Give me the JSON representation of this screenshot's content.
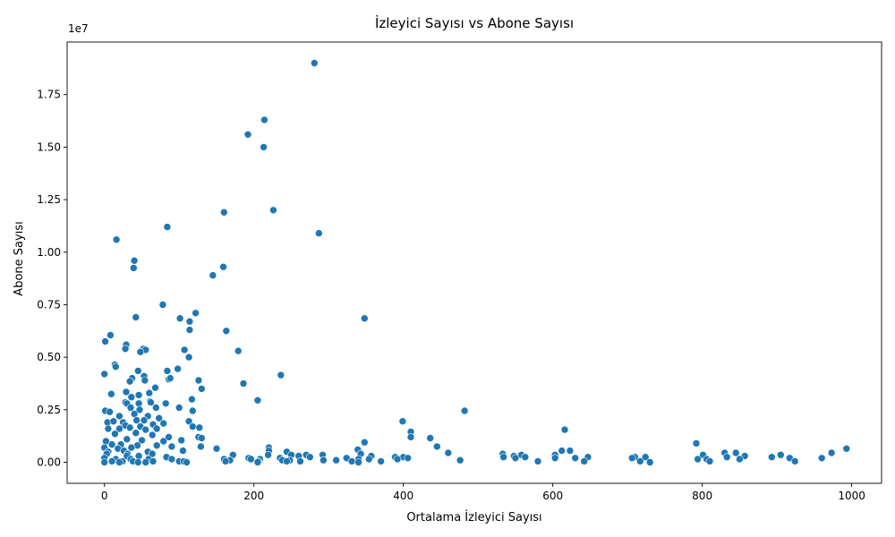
{
  "colors": {
    "marker": "#1f77b4",
    "marker_edge": "#ffffff",
    "axes": "#000000"
  },
  "chart_data": {
    "type": "scatter",
    "title": "İzleyici Sayısı vs Abone Sayısı",
    "xlabel": "Ortalama İzleyici Sayısı",
    "ylabel": "Abone Sayısı",
    "y_offset_label": "1e7",
    "xlim": [
      -50,
      1040
    ],
    "ylim": [
      -1000000,
      20000000
    ],
    "xticks": [
      0,
      200,
      400,
      600,
      800,
      1000
    ],
    "xtick_labels": [
      "0",
      "200",
      "400",
      "600",
      "800",
      "1000"
    ],
    "yticks": [
      0,
      2500000,
      5000000,
      7500000,
      10000000,
      12500000,
      15000000,
      17500000
    ],
    "ytick_labels": [
      "0.00",
      "0.25",
      "0.50",
      "0.75",
      "1.00",
      "1.25",
      "1.50",
      "1.75"
    ],
    "grid": false,
    "legend": "none",
    "points": [
      [
        281,
        19000000
      ],
      [
        214,
        16300000
      ],
      [
        192,
        15600000
      ],
      [
        213,
        15000000
      ],
      [
        226,
        12000000
      ],
      [
        160,
        11900000
      ],
      [
        84,
        11200000
      ],
      [
        287,
        10900000
      ],
      [
        16,
        10600000
      ],
      [
        40,
        9600000
      ],
      [
        39,
        9250000
      ],
      [
        159,
        9300000
      ],
      [
        145,
        8900000
      ],
      [
        78,
        7500000
      ],
      [
        122,
        7100000
      ],
      [
        42,
        6900000
      ],
      [
        101,
        6850000
      ],
      [
        114,
        6700000
      ],
      [
        348,
        6850000
      ],
      [
        114,
        6300000
      ],
      [
        163,
        6250000
      ],
      [
        8,
        6050000
      ],
      [
        1,
        5750000
      ],
      [
        29,
        5600000
      ],
      [
        28,
        5400000
      ],
      [
        52,
        5400000
      ],
      [
        55,
        5350000
      ],
      [
        48,
        5250000
      ],
      [
        107,
        5350000
      ],
      [
        179,
        5300000
      ],
      [
        113,
        5000000
      ],
      [
        14,
        4650000
      ],
      [
        15,
        4550000
      ],
      [
        84,
        4350000
      ],
      [
        98,
        4450000
      ],
      [
        45,
        4350000
      ],
      [
        0,
        4200000
      ],
      [
        236,
        4150000
      ],
      [
        53,
        4100000
      ],
      [
        37,
        4000000
      ],
      [
        86,
        3950000
      ],
      [
        88,
        4000000
      ],
      [
        126,
        3900000
      ],
      [
        34,
        3850000
      ],
      [
        186,
        3750000
      ],
      [
        54,
        3900000
      ],
      [
        68,
        3550000
      ],
      [
        130,
        3500000
      ],
      [
        9,
        3250000
      ],
      [
        29,
        3350000
      ],
      [
        46,
        3200000
      ],
      [
        60,
        3300000
      ],
      [
        36,
        3100000
      ],
      [
        117,
        3000000
      ],
      [
        61,
        2900000
      ],
      [
        205,
        2950000
      ],
      [
        28,
        2850000
      ],
      [
        30,
        2800000
      ],
      [
        46,
        2800000
      ],
      [
        62,
        2850000
      ],
      [
        82,
        2800000
      ],
      [
        100,
        2600000
      ],
      [
        35,
        2600000
      ],
      [
        47,
        2500000
      ],
      [
        69,
        2600000
      ],
      [
        1,
        2450000
      ],
      [
        118,
        2450000
      ],
      [
        482,
        2450000
      ],
      [
        7,
        2400000
      ],
      [
        20,
        2200000
      ],
      [
        40,
        2300000
      ],
      [
        73,
        2100000
      ],
      [
        58,
        2200000
      ],
      [
        399,
        1950000
      ],
      [
        4,
        1900000
      ],
      [
        12,
        1950000
      ],
      [
        25,
        1900000
      ],
      [
        43,
        2000000
      ],
      [
        53,
        2000000
      ],
      [
        79,
        1850000
      ],
      [
        113,
        1950000
      ],
      [
        28,
        1750000
      ],
      [
        65,
        1800000
      ],
      [
        118,
        1700000
      ],
      [
        127,
        1650000
      ],
      [
        616,
        1550000
      ],
      [
        410,
        1450000
      ],
      [
        5,
        1600000
      ],
      [
        20,
        1600000
      ],
      [
        34,
        1650000
      ],
      [
        48,
        1700000
      ],
      [
        55,
        1550000
      ],
      [
        70,
        1600000
      ],
      [
        410,
        1200000
      ],
      [
        14,
        1350000
      ],
      [
        42,
        1400000
      ],
      [
        64,
        1300000
      ],
      [
        86,
        1200000
      ],
      [
        126,
        1200000
      ],
      [
        130,
        1150000
      ],
      [
        436,
        1150000
      ],
      [
        2,
        1000000
      ],
      [
        30,
        1100000
      ],
      [
        50,
        1050000
      ],
      [
        79,
        1000000
      ],
      [
        103,
        1050000
      ],
      [
        348,
        950000
      ],
      [
        792,
        900000
      ],
      [
        10,
        850000
      ],
      [
        22,
        850000
      ],
      [
        44,
        800000
      ],
      [
        70,
        800000
      ],
      [
        90,
        750000
      ],
      [
        129,
        750000
      ],
      [
        150,
        650000
      ],
      [
        445,
        750000
      ],
      [
        993,
        650000
      ],
      [
        0,
        700000
      ],
      [
        18,
        650000
      ],
      [
        36,
        700000
      ],
      [
        105,
        550000
      ],
      [
        220,
        700000
      ],
      [
        339,
        600000
      ],
      [
        612,
        550000
      ],
      [
        623,
        550000
      ],
      [
        5,
        500000
      ],
      [
        26,
        550000
      ],
      [
        58,
        500000
      ],
      [
        220,
        550000
      ],
      [
        244,
        500000
      ],
      [
        460,
        450000
      ],
      [
        533,
        400000
      ],
      [
        845,
        450000
      ],
      [
        973,
        450000
      ],
      [
        830,
        450000
      ],
      [
        3,
        400000
      ],
      [
        31,
        400000
      ],
      [
        64,
        400000
      ],
      [
        172,
        350000
      ],
      [
        219,
        350000
      ],
      [
        250,
        350000
      ],
      [
        270,
        350000
      ],
      [
        292,
        350000
      ],
      [
        343,
        400000
      ],
      [
        357,
        300000
      ],
      [
        558,
        350000
      ],
      [
        603,
        350000
      ],
      [
        801,
        350000
      ],
      [
        905,
        350000
      ],
      [
        30,
        300000
      ],
      [
        46,
        300000
      ],
      [
        83,
        250000
      ],
      [
        193,
        200000
      ],
      [
        235,
        200000
      ],
      [
        260,
        300000
      ],
      [
        275,
        250000
      ],
      [
        324,
        200000
      ],
      [
        389,
        250000
      ],
      [
        400,
        250000
      ],
      [
        534,
        250000
      ],
      [
        548,
        300000
      ],
      [
        563,
        250000
      ],
      [
        647,
        250000
      ],
      [
        710,
        250000
      ],
      [
        724,
        250000
      ],
      [
        833,
        250000
      ],
      [
        857,
        300000
      ],
      [
        893,
        250000
      ],
      [
        917,
        200000
      ],
      [
        0,
        200000
      ],
      [
        15,
        150000
      ],
      [
        35,
        150000
      ],
      [
        59,
        150000
      ],
      [
        90,
        150000
      ],
      [
        160,
        150000
      ],
      [
        168,
        100000
      ],
      [
        196,
        150000
      ],
      [
        208,
        150000
      ],
      [
        238,
        100000
      ],
      [
        248,
        100000
      ],
      [
        293,
        100000
      ],
      [
        310,
        100000
      ],
      [
        340,
        150000
      ],
      [
        354,
        150000
      ],
      [
        392,
        150000
      ],
      [
        406,
        200000
      ],
      [
        476,
        100000
      ],
      [
        550,
        200000
      ],
      [
        603,
        200000
      ],
      [
        630,
        200000
      ],
      [
        706,
        200000
      ],
      [
        794,
        150000
      ],
      [
        806,
        150000
      ],
      [
        850,
        150000
      ],
      [
        960,
        200000
      ],
      [
        10,
        50000
      ],
      [
        24,
        50000
      ],
      [
        38,
        50000
      ],
      [
        65,
        50000
      ],
      [
        100,
        50000
      ],
      [
        106,
        50000
      ],
      [
        162,
        50000
      ],
      [
        206,
        50000
      ],
      [
        244,
        50000
      ],
      [
        262,
        50000
      ],
      [
        331,
        50000
      ],
      [
        370,
        50000
      ],
      [
        580,
        50000
      ],
      [
        642,
        50000
      ],
      [
        717,
        50000
      ],
      [
        730,
        0
      ],
      [
        810,
        50000
      ],
      [
        924,
        50000
      ],
      [
        0,
        0
      ],
      [
        20,
        0
      ],
      [
        45,
        0
      ],
      [
        55,
        0
      ],
      [
        110,
        0
      ],
      [
        205,
        0
      ],
      [
        340,
        0
      ]
    ]
  }
}
